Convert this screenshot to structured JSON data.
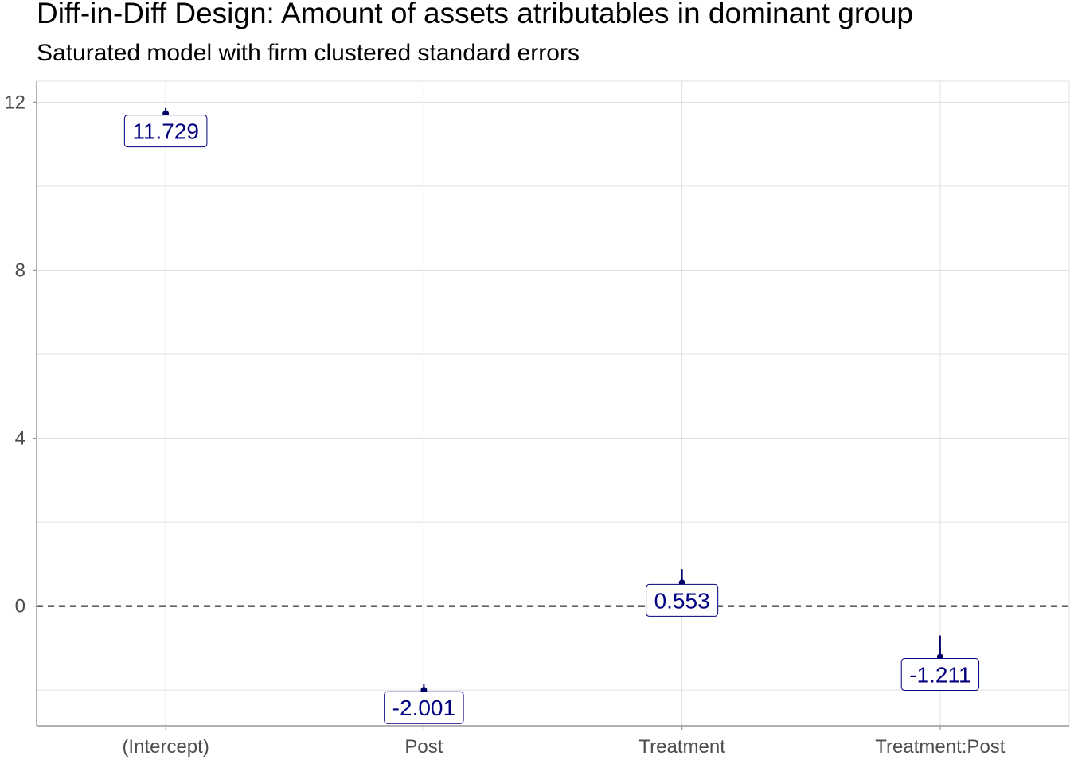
{
  "chart_data": {
    "type": "scatter",
    "title": "Diff-in-Diff Design: Amount of assets atributables in dominant group",
    "subtitle": "Saturated model with firm clustered standard errors",
    "xlabel": "",
    "ylabel": "",
    "categories": [
      "(Intercept)",
      "Post",
      "Treatment",
      "Treatment:Post"
    ],
    "estimates": [
      11.729,
      -2.001,
      0.553,
      -1.211
    ],
    "ci_low": [
      11.6,
      -2.3,
      0.35,
      -1.55
    ],
    "ci_high": [
      11.86,
      -1.85,
      0.88,
      -0.7
    ],
    "labels": [
      "11.729",
      "-2.001",
      "0.553",
      "-1.211"
    ],
    "y_ticks": [
      0,
      4,
      8,
      12
    ],
    "y_tick_labels": [
      "0",
      "4",
      "8",
      "12"
    ],
    "ylim": [
      -2.85,
      12.5
    ],
    "reference_line": 0,
    "grid": true,
    "colors": {
      "points": "#000066",
      "label_text": "#000080",
      "label_border": "#000080",
      "grid": "#e0e0e0",
      "axis": "#999999",
      "reference_line": "#000000"
    }
  }
}
